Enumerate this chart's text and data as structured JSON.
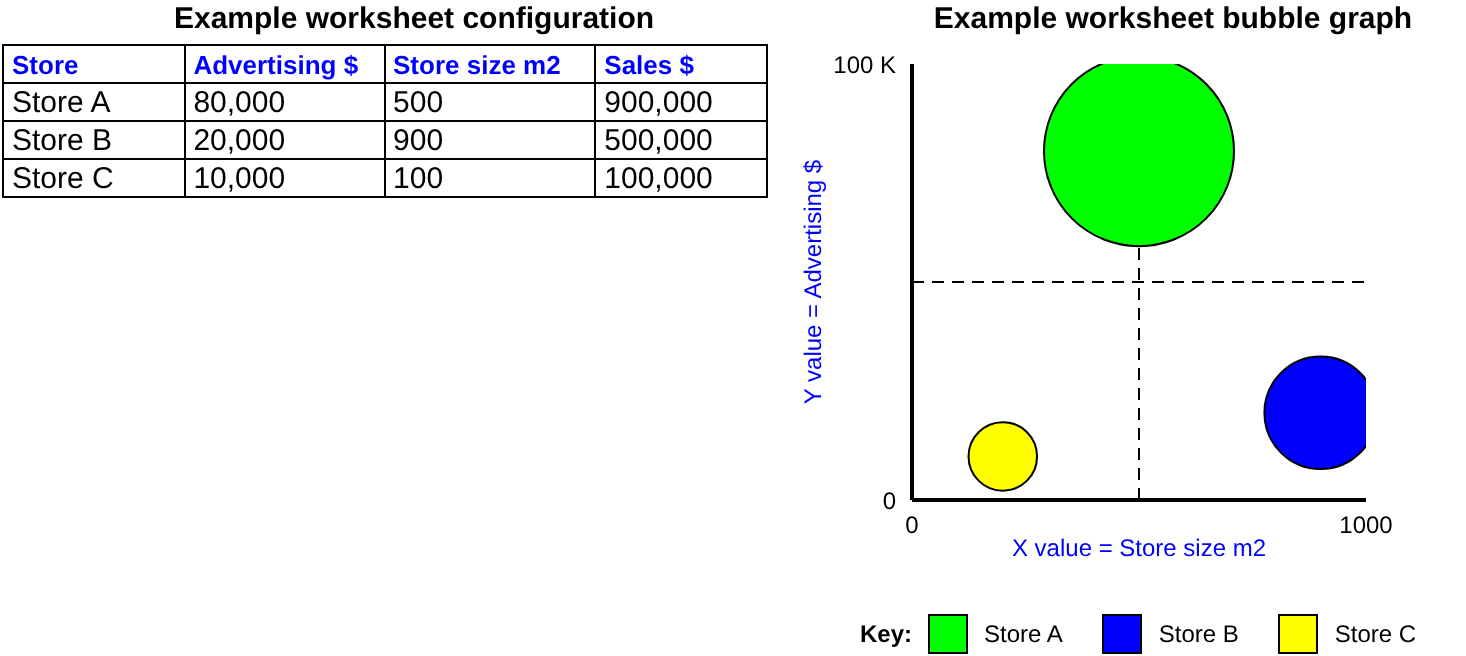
{
  "chart_data": [
    {
      "type": "other",
      "title": "Example worksheet configuration",
      "annotations": [
        "Store",
        "Advertising $",
        "Store size m2",
        "Sales $",
        "Store A",
        "80,000",
        "500",
        "900,000",
        "Store B",
        "20,000",
        "900",
        "500,000",
        "Store C",
        "10,000",
        "100",
        "100,000"
      ]
    },
    {
      "type": "bubble",
      "title": "Example worksheet bubble graph",
      "xlabel": "X value = Store size m2",
      "ylabel": "Y value = Advertising $",
      "legend_title": "Key:",
      "legend": "bottom",
      "xlim": [
        0,
        1000
      ],
      "xticks": [
        0,
        1000
      ],
      "ylim": [
        0,
        100000
      ],
      "yticks": [
        0,
        {
          "value": 100000,
          "label": "100 K"
        }
      ],
      "ref_lines": [
        {
          "axis": "x",
          "value": 500,
          "line_style": "dashed",
          "color": "#000000"
        },
        {
          "axis": "y",
          "value": 50000,
          "line_style": "dashed",
          "color": "#000000"
        }
      ],
      "series": [
        {
          "name": "Store A",
          "color": "#00ff00",
          "x": [
            500
          ],
          "values": [
            80000
          ],
          "sizes": [
            1
          ]
        },
        {
          "name": "Store B",
          "color": "#0000ff",
          "x": [
            900
          ],
          "values": [
            20000
          ],
          "sizes": [
            0.35
          ]
        },
        {
          "name": "Store C",
          "color": "#ffff00",
          "x": [
            200
          ],
          "values": [
            10000
          ],
          "sizes": [
            0.13
          ]
        }
      ]
    }
  ]
}
